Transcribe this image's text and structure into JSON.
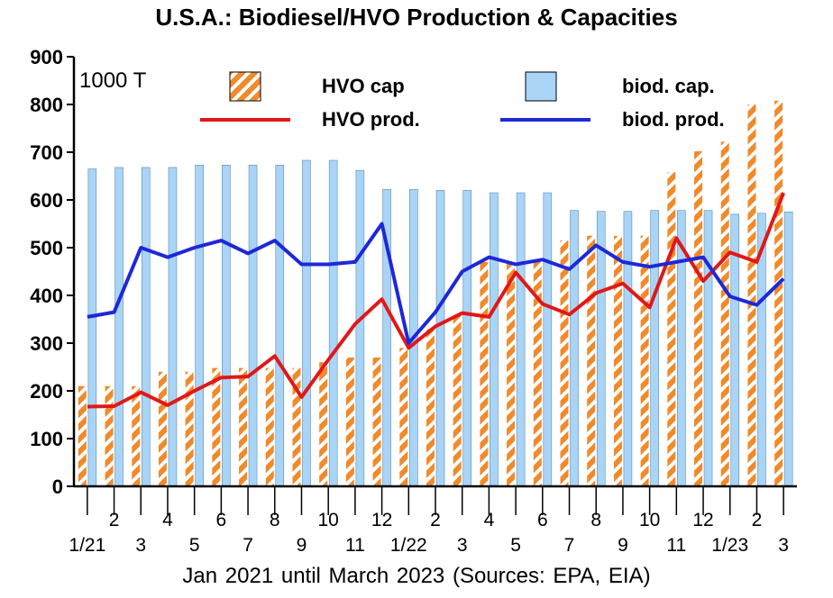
{
  "chart_data": {
    "type": "bar",
    "title": "U.S.A.: Biodiesel/HVO Production & Capacities",
    "unit_label": "1000 T",
    "footer": "Jan 2021 until March 2023   (Sources: EPA, EIA)",
    "ylim": [
      0,
      900
    ],
    "yticks": [
      "0",
      "100",
      "200",
      "300",
      "400",
      "500",
      "600",
      "700",
      "800",
      "900"
    ],
    "grid": false,
    "months": [
      "1/21",
      "2",
      "3",
      "4",
      "5",
      "6",
      "7",
      "8",
      "9",
      "10",
      "11",
      "12",
      "1/22",
      "2",
      "3",
      "4",
      "5",
      "6",
      "7",
      "8",
      "9",
      "10",
      "11",
      "12",
      "1/23",
      "2",
      "3"
    ],
    "series": [
      {
        "name": "HVO cap",
        "type": "bar",
        "color": "#f08a2a",
        "values": [
          210,
          210,
          210,
          240,
          240,
          248,
          248,
          248,
          248,
          260,
          270,
          270,
          290,
          330,
          360,
          470,
          470,
          470,
          515,
          525,
          525,
          525,
          658,
          702,
          722,
          800,
          808
        ]
      },
      {
        "name": "biod. cap.",
        "type": "bar",
        "color": "#a9d4f5",
        "values": [
          665,
          668,
          668,
          668,
          673,
          673,
          673,
          673,
          683,
          683,
          662,
          622,
          622,
          620,
          620,
          615,
          615,
          615,
          578,
          576,
          576,
          578,
          578,
          578,
          570,
          572,
          575
        ]
      },
      {
        "name": "HVO prod.",
        "type": "line",
        "color": "#e01818",
        "values": [
          167,
          168,
          197,
          170,
          200,
          228,
          230,
          273,
          187,
          265,
          340,
          392,
          290,
          335,
          363,
          355,
          448,
          382,
          360,
          405,
          425,
          375,
          520,
          430,
          490,
          470,
          615
        ]
      },
      {
        "name": "biod. prod.",
        "type": "line",
        "color": "#1e28d8",
        "values": [
          355,
          365,
          500,
          480,
          500,
          515,
          488,
          515,
          465,
          465,
          470,
          550,
          300,
          365,
          450,
          480,
          465,
          475,
          455,
          505,
          470,
          460,
          470,
          480,
          398,
          380,
          435
        ]
      }
    ]
  }
}
